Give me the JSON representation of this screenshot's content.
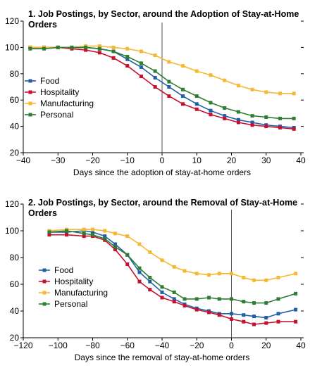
{
  "series_styles": [
    {
      "name": "Food",
      "color": "#1f5fa8",
      "marker": "square"
    },
    {
      "name": "Hospitality",
      "color": "#c8102e",
      "marker": "square"
    },
    {
      "name": "Manufacturing",
      "color": "#f7b731",
      "marker": "square"
    },
    {
      "name": "Personal",
      "color": "#2e7d32",
      "marker": "square"
    }
  ],
  "chart_data": [
    {
      "type": "line",
      "title": "1. Job Postings, by Sector, around the Adoption of Stay-at-Home Orders",
      "title_lines": [
        "1. Job Postings, by Sector, around the Adoption of Stay-at-Home",
        "Orders"
      ],
      "xlabel": "Days since the adoption of stay-at-home orders",
      "ylabel": "",
      "xlim": [
        -40,
        40
      ],
      "ylim": [
        20,
        120
      ],
      "xticks": [
        -40,
        -30,
        -20,
        -10,
        0,
        10,
        20,
        30,
        40
      ],
      "yticks": [
        20,
        40,
        60,
        80,
        100,
        120
      ],
      "vline": 0,
      "legend": "left",
      "series": [
        {
          "name": "Food",
          "x": [
            -38,
            -34,
            -30,
            -26,
            -22,
            -18,
            -14,
            -10,
            -6,
            -2,
            2,
            6,
            10,
            14,
            18,
            22,
            26,
            30,
            34,
            38
          ],
          "y": [
            100,
            100,
            100,
            100,
            100,
            99,
            97,
            91,
            85,
            77,
            70,
            63,
            57,
            52,
            48,
            45,
            43,
            41,
            40,
            39
          ]
        },
        {
          "name": "Hospitality",
          "x": [
            -38,
            -34,
            -30,
            -26,
            -22,
            -18,
            -14,
            -10,
            -6,
            -2,
            2,
            6,
            10,
            14,
            18,
            22,
            26,
            30,
            34,
            38
          ],
          "y": [
            100,
            100,
            100,
            99,
            98,
            96,
            92,
            86,
            78,
            70,
            63,
            57,
            53,
            49,
            46,
            43,
            41,
            40,
            39,
            38
          ]
        },
        {
          "name": "Manufacturing",
          "x": [
            -38,
            -34,
            -30,
            -26,
            -22,
            -18,
            -14,
            -10,
            -6,
            -2,
            2,
            6,
            10,
            14,
            18,
            22,
            26,
            30,
            34,
            38
          ],
          "y": [
            100,
            100,
            100,
            100,
            101,
            101,
            100,
            99,
            97,
            94,
            89,
            86,
            82,
            79,
            75,
            71,
            68,
            66,
            65,
            65
          ]
        },
        {
          "name": "Personal",
          "x": [
            -38,
            -34,
            -30,
            -26,
            -22,
            -18,
            -14,
            -10,
            -6,
            -2,
            2,
            6,
            10,
            14,
            18,
            22,
            26,
            30,
            34,
            38
          ],
          "y": [
            99,
            99,
            100,
            100,
            100,
            99,
            97,
            93,
            88,
            82,
            74,
            68,
            63,
            58,
            54,
            51,
            48,
            47,
            46,
            46
          ]
        }
      ]
    },
    {
      "type": "line",
      "title": "2. Job Postings, by Sector, around the Removal of Stay-at-Home Orders",
      "title_lines": [
        "2. Job Postings, by Sector, around the Removal of Stay-at-Home",
        "Orders"
      ],
      "xlabel": "Days since the removal of stay-at-home orders",
      "ylabel": "",
      "xlim": [
        -120,
        40
      ],
      "ylim": [
        20,
        120
      ],
      "xticks": [
        -120,
        -100,
        -80,
        -60,
        -40,
        -20,
        0,
        20,
        40
      ],
      "yticks": [
        20,
        40,
        60,
        80,
        100,
        120
      ],
      "vline": 0,
      "legend": "left",
      "series": [
        {
          "name": "Food",
          "x": [
            -105,
            -95,
            -85,
            -80,
            -73,
            -67,
            -60,
            -53,
            -47,
            -40,
            -33,
            -27,
            -20,
            -13,
            -7,
            0,
            7,
            13,
            20,
            27,
            37
          ],
          "y": [
            99,
            99,
            100,
            99,
            96,
            90,
            82,
            69,
            62,
            54,
            49,
            45,
            42,
            40,
            38,
            38,
            37,
            36,
            35,
            38,
            41
          ]
        },
        {
          "name": "Hospitality",
          "x": [
            -105,
            -95,
            -85,
            -80,
            -73,
            -67,
            -60,
            -53,
            -47,
            -40,
            -33,
            -27,
            -20,
            -13,
            -7,
            0,
            7,
            13,
            20,
            27,
            37
          ],
          "y": [
            97,
            97,
            96,
            96,
            93,
            86,
            75,
            62,
            56,
            50,
            47,
            44,
            41,
            39,
            37,
            34,
            32,
            30,
            31,
            32,
            32
          ]
        },
        {
          "name": "Manufacturing",
          "x": [
            -105,
            -95,
            -85,
            -80,
            -73,
            -67,
            -60,
            -53,
            -47,
            -40,
            -33,
            -27,
            -20,
            -13,
            -7,
            0,
            7,
            13,
            20,
            27,
            37
          ],
          "y": [
            100,
            101,
            101,
            101,
            100,
            98,
            96,
            90,
            84,
            78,
            73,
            70,
            68,
            67,
            68,
            68,
            65,
            63,
            63,
            65,
            68
          ]
        },
        {
          "name": "Personal",
          "x": [
            -105,
            -95,
            -85,
            -80,
            -73,
            -67,
            -60,
            -53,
            -47,
            -40,
            -33,
            -27,
            -20,
            -13,
            -7,
            0,
            7,
            13,
            20,
            27,
            37
          ],
          "y": [
            99,
            100,
            98,
            97,
            94,
            88,
            82,
            72,
            65,
            58,
            54,
            49,
            49,
            50,
            49,
            49,
            47,
            46,
            46,
            49,
            53
          ]
        }
      ]
    }
  ]
}
